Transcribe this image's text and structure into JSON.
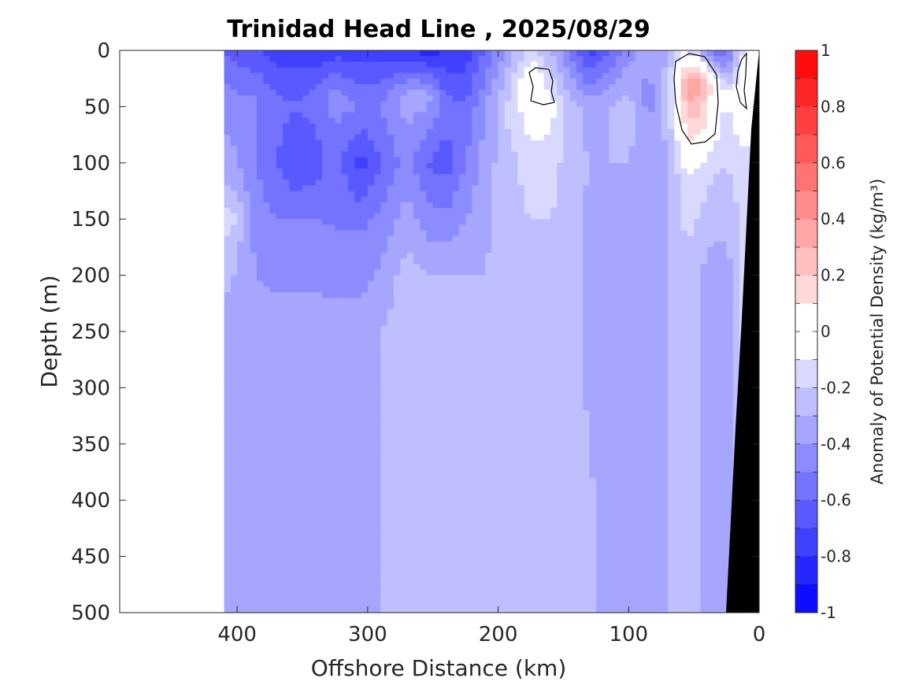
{
  "chart_data": {
    "type": "heatmap",
    "title": "Trinidad Head Line , 2025/08/29",
    "xlabel": "Offshore Distance (km)",
    "ylabel": "Depth (m)",
    "xlim": [
      490,
      0
    ],
    "ylim": [
      0,
      500
    ],
    "x_reversed": true,
    "y_reversed": true,
    "xticks": [
      400,
      300,
      200,
      100,
      0
    ],
    "yticks": [
      0,
      50,
      100,
      150,
      200,
      250,
      300,
      350,
      400,
      450,
      500
    ],
    "colorbar": {
      "label": "Anomaly of Potential Density (kg/m³)",
      "range": [
        -1,
        1
      ],
      "step": 0.1,
      "ticks": [
        1,
        0.8,
        0.6,
        0.4,
        0.2,
        0,
        -0.2,
        -0.4,
        -0.6,
        -0.8,
        -1
      ],
      "color_min": "#0000ff",
      "color_mid": "#ffffff",
      "color_max": "#ff0000"
    },
    "data_extent_km": [
      410,
      0
    ],
    "bathymetry_color": "#000000",
    "grid": false,
    "columns": [
      {
        "x": 410,
        "d": [
          [
            0,
            -0.6
          ],
          [
            40,
            -0.45
          ],
          [
            120,
            -0.3
          ],
          [
            150,
            -0.1
          ],
          [
            180,
            -0.25
          ],
          [
            260,
            -0.35
          ],
          [
            500,
            -0.35
          ]
        ]
      },
      {
        "x": 400,
        "d": [
          [
            0,
            -0.65
          ],
          [
            40,
            -0.5
          ],
          [
            120,
            -0.35
          ],
          [
            150,
            -0.2
          ],
          [
            180,
            -0.3
          ],
          [
            300,
            -0.35
          ],
          [
            500,
            -0.35
          ]
        ]
      },
      {
        "x": 385,
        "d": [
          [
            0,
            -0.7
          ],
          [
            40,
            -0.5
          ],
          [
            100,
            -0.5
          ],
          [
            150,
            -0.45
          ],
          [
            250,
            -0.35
          ],
          [
            500,
            -0.35
          ]
        ]
      },
      {
        "x": 370,
        "d": [
          [
            0,
            -0.75
          ],
          [
            50,
            -0.55
          ],
          [
            100,
            -0.6
          ],
          [
            150,
            -0.5
          ],
          [
            250,
            -0.35
          ],
          [
            500,
            -0.35
          ]
        ]
      },
      {
        "x": 355,
        "d": [
          [
            0,
            -0.75
          ],
          [
            50,
            -0.6
          ],
          [
            100,
            -0.7
          ],
          [
            150,
            -0.5
          ],
          [
            250,
            -0.35
          ],
          [
            500,
            -0.35
          ]
        ]
      },
      {
        "x": 340,
        "d": [
          [
            0,
            -0.8
          ],
          [
            40,
            -0.55
          ],
          [
            100,
            -0.65
          ],
          [
            150,
            -0.5
          ],
          [
            250,
            -0.35
          ],
          [
            500,
            -0.35
          ]
        ]
      },
      {
        "x": 325,
        "d": [
          [
            0,
            -0.75
          ],
          [
            40,
            -0.45
          ],
          [
            100,
            -0.55
          ],
          [
            160,
            -0.5
          ],
          [
            250,
            -0.35
          ],
          [
            500,
            -0.35
          ]
        ]
      },
      {
        "x": 305,
        "d": [
          [
            0,
            -0.75
          ],
          [
            50,
            -0.5
          ],
          [
            100,
            -0.75
          ],
          [
            160,
            -0.5
          ],
          [
            250,
            -0.35
          ],
          [
            500,
            -0.35
          ]
        ]
      },
      {
        "x": 290,
        "d": [
          [
            0,
            -0.75
          ],
          [
            50,
            -0.5
          ],
          [
            100,
            -0.6
          ],
          [
            160,
            -0.45
          ],
          [
            250,
            -0.3
          ],
          [
            500,
            -0.3
          ]
        ]
      },
      {
        "x": 270,
        "d": [
          [
            0,
            -0.8
          ],
          [
            40,
            -0.35
          ],
          [
            100,
            -0.45
          ],
          [
            200,
            -0.25
          ],
          [
            300,
            -0.25
          ],
          [
            500,
            -0.25
          ]
        ]
      },
      {
        "x": 255,
        "d": [
          [
            0,
            -0.85
          ],
          [
            40,
            -0.35
          ],
          [
            100,
            -0.6
          ],
          [
            200,
            -0.3
          ],
          [
            300,
            -0.25
          ],
          [
            500,
            -0.25
          ]
        ]
      },
      {
        "x": 240,
        "d": [
          [
            0,
            -0.8
          ],
          [
            50,
            -0.55
          ],
          [
            100,
            -0.65
          ],
          [
            200,
            -0.3
          ],
          [
            300,
            -0.25
          ],
          [
            500,
            -0.25
          ]
        ]
      },
      {
        "x": 225,
        "d": [
          [
            0,
            -0.75
          ],
          [
            50,
            -0.6
          ],
          [
            100,
            -0.5
          ],
          [
            200,
            -0.3
          ],
          [
            300,
            -0.3
          ],
          [
            500,
            -0.25
          ]
        ]
      },
      {
        "x": 210,
        "d": [
          [
            0,
            -0.6
          ],
          [
            50,
            -0.4
          ],
          [
            100,
            -0.35
          ],
          [
            200,
            -0.3
          ],
          [
            350,
            -0.25
          ],
          [
            500,
            -0.25
          ]
        ]
      },
      {
        "x": 195,
        "d": [
          [
            0,
            -0.4
          ],
          [
            50,
            -0.2
          ],
          [
            100,
            -0.25
          ],
          [
            200,
            -0.25
          ],
          [
            500,
            -0.25
          ]
        ]
      },
      {
        "x": 175,
        "d": [
          [
            0,
            -0.15
          ],
          [
            30,
            0.05
          ],
          [
            60,
            -0.05
          ],
          [
            100,
            -0.15
          ],
          [
            200,
            -0.25
          ],
          [
            500,
            -0.25
          ]
        ]
      },
      {
        "x": 160,
        "d": [
          [
            0,
            -0.3
          ],
          [
            50,
            -0.05
          ],
          [
            100,
            -0.15
          ],
          [
            200,
            -0.25
          ],
          [
            500,
            -0.25
          ]
        ]
      },
      {
        "x": 145,
        "d": [
          [
            0,
            -0.5
          ],
          [
            50,
            -0.25
          ],
          [
            100,
            -0.25
          ],
          [
            200,
            -0.25
          ],
          [
            500,
            -0.25
          ]
        ]
      },
      {
        "x": 130,
        "d": [
          [
            0,
            -0.75
          ],
          [
            50,
            -0.35
          ],
          [
            100,
            -0.3
          ],
          [
            200,
            -0.35
          ],
          [
            500,
            -0.25
          ]
        ]
      },
      {
        "x": 115,
        "d": [
          [
            0,
            -0.6
          ],
          [
            50,
            -0.3
          ],
          [
            100,
            -0.3
          ],
          [
            200,
            -0.35
          ],
          [
            500,
            -0.35
          ]
        ]
      },
      {
        "x": 100,
        "d": [
          [
            0,
            -0.45
          ],
          [
            50,
            -0.25
          ],
          [
            100,
            -0.3
          ],
          [
            200,
            -0.35
          ],
          [
            500,
            -0.35
          ]
        ]
      },
      {
        "x": 85,
        "d": [
          [
            0,
            -0.35
          ],
          [
            40,
            -0.45
          ],
          [
            100,
            -0.35
          ],
          [
            200,
            -0.35
          ],
          [
            500,
            -0.35
          ]
        ]
      },
      {
        "x": 70,
        "d": [
          [
            0,
            -0.3
          ],
          [
            40,
            -0.25
          ],
          [
            100,
            -0.3
          ],
          [
            200,
            -0.3
          ],
          [
            500,
            -0.3
          ]
        ]
      },
      {
        "x": 55,
        "d": [
          [
            0,
            -0.1
          ],
          [
            30,
            0.4
          ],
          [
            70,
            0.15
          ],
          [
            110,
            -0.1
          ],
          [
            200,
            -0.25
          ],
          [
            500,
            -0.25
          ]
        ]
      },
      {
        "x": 45,
        "d": [
          [
            0,
            -0.3
          ],
          [
            30,
            0.35
          ],
          [
            70,
            0.15
          ],
          [
            110,
            -0.15
          ],
          [
            200,
            -0.3
          ],
          [
            500,
            -0.3
          ]
        ]
      },
      {
        "x": 35,
        "d": [
          [
            0,
            -0.55
          ],
          [
            30,
            0.05
          ],
          [
            70,
            -0.05
          ],
          [
            110,
            -0.2
          ],
          [
            200,
            -0.35
          ],
          [
            500,
            -0.35
          ]
        ]
      },
      {
        "x": 25,
        "d": [
          [
            0,
            -0.6
          ],
          [
            40,
            -0.1
          ],
          [
            100,
            -0.2
          ],
          [
            200,
            -0.35
          ],
          [
            500,
            -0.35
          ]
        ]
      },
      {
        "x": 12,
        "d": [
          [
            0,
            -0.1
          ],
          [
            40,
            0.05
          ],
          [
            100,
            -0.15
          ],
          [
            300,
            -0.2
          ],
          [
            500,
            -0.2
          ]
        ]
      },
      {
        "x": 0,
        "d": [
          [
            0,
            -0.05
          ],
          [
            40,
            -0.05
          ],
          [
            100,
            -0.1
          ],
          [
            500,
            -0.1
          ]
        ]
      }
    ]
  }
}
